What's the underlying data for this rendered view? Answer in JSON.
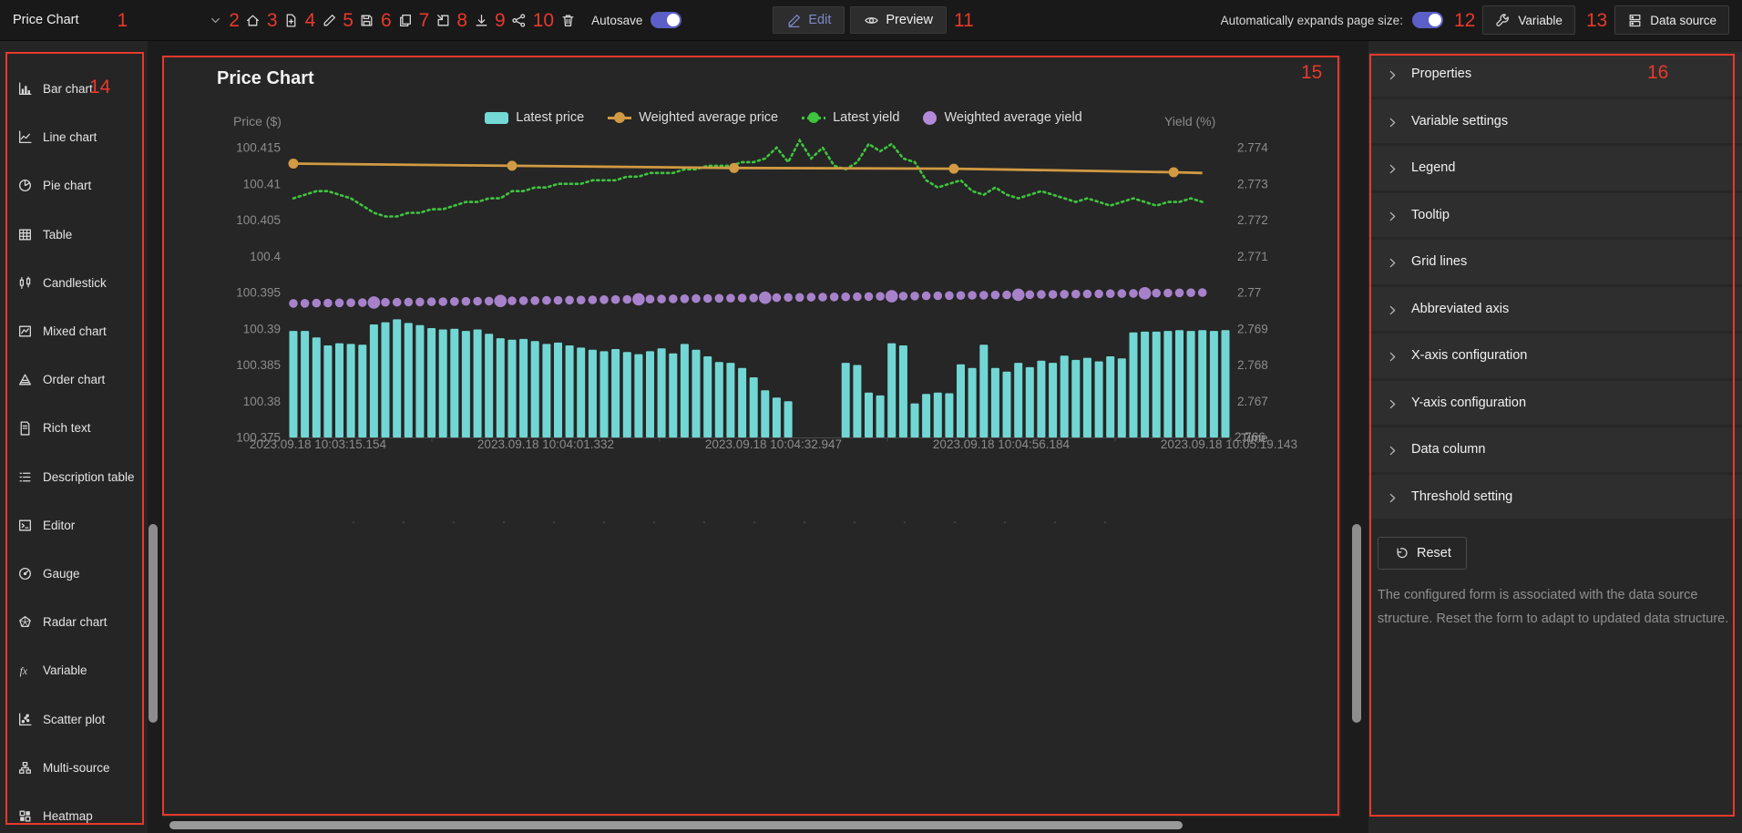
{
  "topbar": {
    "title": "Price Chart",
    "autosave_label": "Autosave",
    "edit_label": "Edit",
    "preview_label": "Preview",
    "auto_expand_label": "Automatically expands page size:",
    "variable_label": "Variable",
    "datasource_label": "Data source",
    "tools": [
      {
        "num": "2",
        "icon": "home-icon"
      },
      {
        "num": "3",
        "icon": "file-plus-icon"
      },
      {
        "num": "4",
        "icon": "pencil-icon"
      },
      {
        "num": "5",
        "icon": "save-icon"
      },
      {
        "num": "6",
        "icon": "copy-icon"
      },
      {
        "num": "7",
        "icon": "import-icon"
      },
      {
        "num": "8",
        "icon": "download-icon"
      },
      {
        "num": "9",
        "icon": "share-icon"
      },
      {
        "num": "10",
        "icon": "trash-icon"
      }
    ]
  },
  "annotations": {
    "a1": "1",
    "a11": "11",
    "a12": "12",
    "a13": "13",
    "a14": "14",
    "a15": "15",
    "a16": "16"
  },
  "sidebar": {
    "items": [
      {
        "icon": "bar-chart-icon",
        "label": "Bar chart"
      },
      {
        "icon": "line-chart-icon",
        "label": "Line chart"
      },
      {
        "icon": "pie-chart-icon",
        "label": "Pie chart"
      },
      {
        "icon": "table-icon",
        "label": "Table"
      },
      {
        "icon": "candlestick-icon",
        "label": "Candlestick"
      },
      {
        "icon": "mixed-chart-icon",
        "label": "Mixed chart"
      },
      {
        "icon": "order-chart-icon",
        "label": "Order chart"
      },
      {
        "icon": "rich-text-icon",
        "label": "Rich text"
      },
      {
        "icon": "description-table-icon",
        "label": "Description table"
      },
      {
        "icon": "editor-icon",
        "label": "Editor"
      },
      {
        "icon": "gauge-icon",
        "label": "Gauge"
      },
      {
        "icon": "radar-chart-icon",
        "label": "Radar chart"
      },
      {
        "icon": "variable-fx-icon",
        "label": "Variable"
      },
      {
        "icon": "scatter-plot-icon",
        "label": "Scatter plot"
      },
      {
        "icon": "multi-source-icon",
        "label": "Multi-source"
      },
      {
        "icon": "heatmap-icon",
        "label": "Heatmap"
      }
    ]
  },
  "panel": {
    "sections": [
      {
        "label": "Properties"
      },
      {
        "label": "Variable settings"
      },
      {
        "label": "Legend"
      },
      {
        "label": "Tooltip"
      },
      {
        "label": "Grid lines"
      },
      {
        "label": "Abbreviated axis"
      },
      {
        "label": "X-axis configuration"
      },
      {
        "label": "Y-axis configuration"
      },
      {
        "label": "Data column"
      },
      {
        "label": "Threshold setting"
      }
    ],
    "reset_label": "Reset",
    "description": "The configured form is associated with the data source structure. Reset the form to adapt to updated data structure."
  },
  "chart_data": {
    "type": "mixed",
    "title": "Price Chart",
    "left_axis_title": "Price ($)",
    "right_axis_title": "Yield (%)",
    "x_axis_name": "Time",
    "legend": [
      {
        "name": "Latest price",
        "color": "#74d9d5",
        "marker": "bar"
      },
      {
        "name": "Weighted average price",
        "color": "#d19a43",
        "marker": "line"
      },
      {
        "name": "Latest yield",
        "color": "#3ec43e",
        "marker": "dotted"
      },
      {
        "name": "Weighted average yield",
        "color": "#b28ad9",
        "marker": "circle"
      }
    ],
    "price_axis": {
      "min": 100.375,
      "max": 100.415,
      "step": 0.005,
      "labels": [
        "100.375",
        "100.38",
        "100.385",
        "100.39",
        "100.395",
        "100.4",
        "100.405",
        "100.41",
        "100.415"
      ]
    },
    "yield_axis": {
      "min": 2.766,
      "max": 2.774,
      "step": 0.001,
      "labels": [
        "2.766",
        "2.767",
        "2.768",
        "2.769",
        "2.77",
        "2.771",
        "2.772",
        "2.773",
        "2.774"
      ]
    },
    "x_labels": [
      "2023.09.18 10:03:15.154",
      "2023.09.18 10:04:01.332",
      "2023.09.18 10:04:32.947",
      "2023.09.18 10:04:56.184",
      "2023.09.18 10:05:19.143"
    ],
    "bars": {
      "name": "Latest price",
      "color": "#72d7d4",
      "values": [
        100.3897,
        100.3897,
        100.3888,
        100.3877,
        100.388,
        100.3879,
        100.3878,
        100.3906,
        100.3909,
        100.3913,
        100.3908,
        100.3905,
        100.3901,
        100.3899,
        100.39,
        100.3897,
        100.3899,
        100.3893,
        100.3887,
        100.3885,
        100.3886,
        100.3883,
        100.3879,
        100.3881,
        100.3877,
        100.3874,
        100.3871,
        100.3869,
        100.3872,
        100.3868,
        100.3865,
        100.3869,
        100.3873,
        100.3866,
        100.3879,
        100.3871,
        100.3862,
        100.3854,
        100.3853,
        100.3846,
        100.3833,
        100.3815,
        100.3805,
        100.38,
        null,
        null,
        null,
        null,
        100.3853,
        100.385,
        100.3812,
        100.3808,
        100.388,
        100.3877,
        100.3797,
        100.381,
        100.3812,
        100.3811,
        100.3851,
        100.3846,
        100.3878,
        100.3846,
        100.3841,
        100.3853,
        100.3847,
        100.3856,
        100.3853,
        100.3863,
        100.3857,
        100.386,
        100.3855,
        100.3862,
        100.3859,
        100.3895,
        100.3896,
        100.3896,
        100.3897,
        100.3898,
        100.3897,
        100.3898,
        100.3897,
        100.3898
      ]
    },
    "wap": {
      "name": "Weighted average price",
      "color": "#d19a43",
      "points": [
        [
          0,
          100.4128
        ],
        [
          19,
          100.4125
        ],
        [
          38.3,
          100.4122
        ],
        [
          57.4,
          100.4121
        ],
        [
          76.5,
          100.4116
        ],
        [
          79,
          100.4115
        ]
      ],
      "marker_count": 5
    },
    "latest_yield": {
      "name": "Latest yield",
      "color": "#3ec43e",
      "values": [
        2.7726,
        2.7727,
        2.7728,
        2.7728,
        2.7727,
        2.7726,
        2.7724,
        2.7722,
        2.7721,
        2.7721,
        2.7722,
        2.7722,
        2.7723,
        2.7723,
        2.7724,
        2.7725,
        2.7725,
        2.7726,
        2.7726,
        2.7728,
        2.7728,
        2.7729,
        2.7729,
        2.773,
        2.773,
        2.773,
        2.7731,
        2.7731,
        2.7731,
        2.7732,
        2.7732,
        2.7733,
        2.7733,
        2.7733,
        2.7734,
        2.7734,
        2.7735,
        2.7735,
        2.7735,
        2.7736,
        2.7736,
        2.7737,
        2.774,
        2.7736,
        2.7742,
        2.7737,
        2.774,
        2.7735,
        2.7734,
        2.7736,
        2.7741,
        2.7739,
        2.7741,
        2.7737,
        2.7736,
        2.7731,
        2.7729,
        2.773,
        2.7731,
        2.7728,
        2.7727,
        2.7729,
        2.7727,
        2.7726,
        2.7727,
        2.7728,
        2.7727,
        2.7726,
        2.7725,
        2.7726,
        2.7725,
        2.7724,
        2.7725,
        2.7726,
        2.7725,
        2.7724,
        2.7725,
        2.7725,
        2.7726,
        2.7725
      ]
    },
    "way": {
      "name": "Weighted average yield",
      "color": "#b28ad9",
      "start": 2.7697,
      "end": 2.77,
      "big_marker_indices": [
        7,
        18,
        30,
        41,
        52,
        63,
        74
      ]
    }
  }
}
